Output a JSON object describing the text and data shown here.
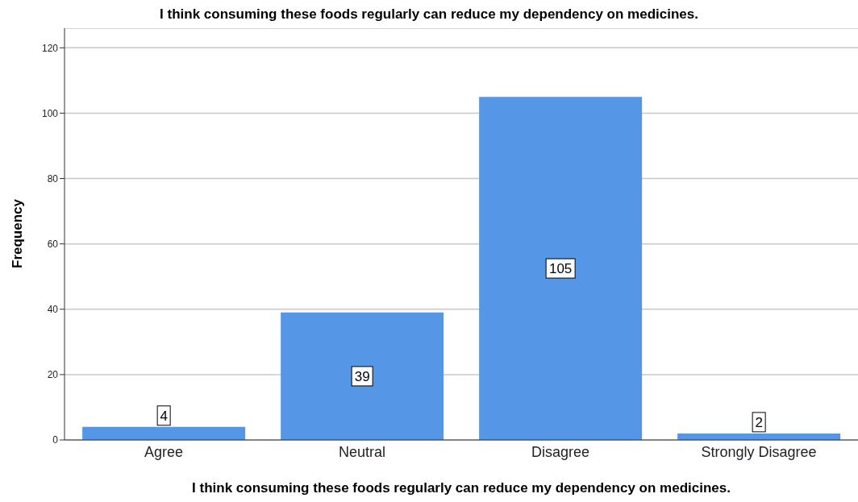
{
  "chart_data": {
    "type": "bar",
    "title": "I think consuming these foods regularly can reduce my dependency on medicines.",
    "xlabel": "I think consuming these foods regularly can reduce my dependency on medicines.",
    "ylabel": "Frequency",
    "categories": [
      "Agree",
      "Neutral",
      "Disagree",
      "Strongly Disagree"
    ],
    "values": [
      4,
      39,
      105,
      2
    ],
    "color": "#5596e6",
    "ylim": [
      0,
      126
    ],
    "yticks": [
      0,
      20,
      40,
      60,
      80,
      100,
      120
    ],
    "grid": "y",
    "data_labels": true,
    "legend": false
  }
}
